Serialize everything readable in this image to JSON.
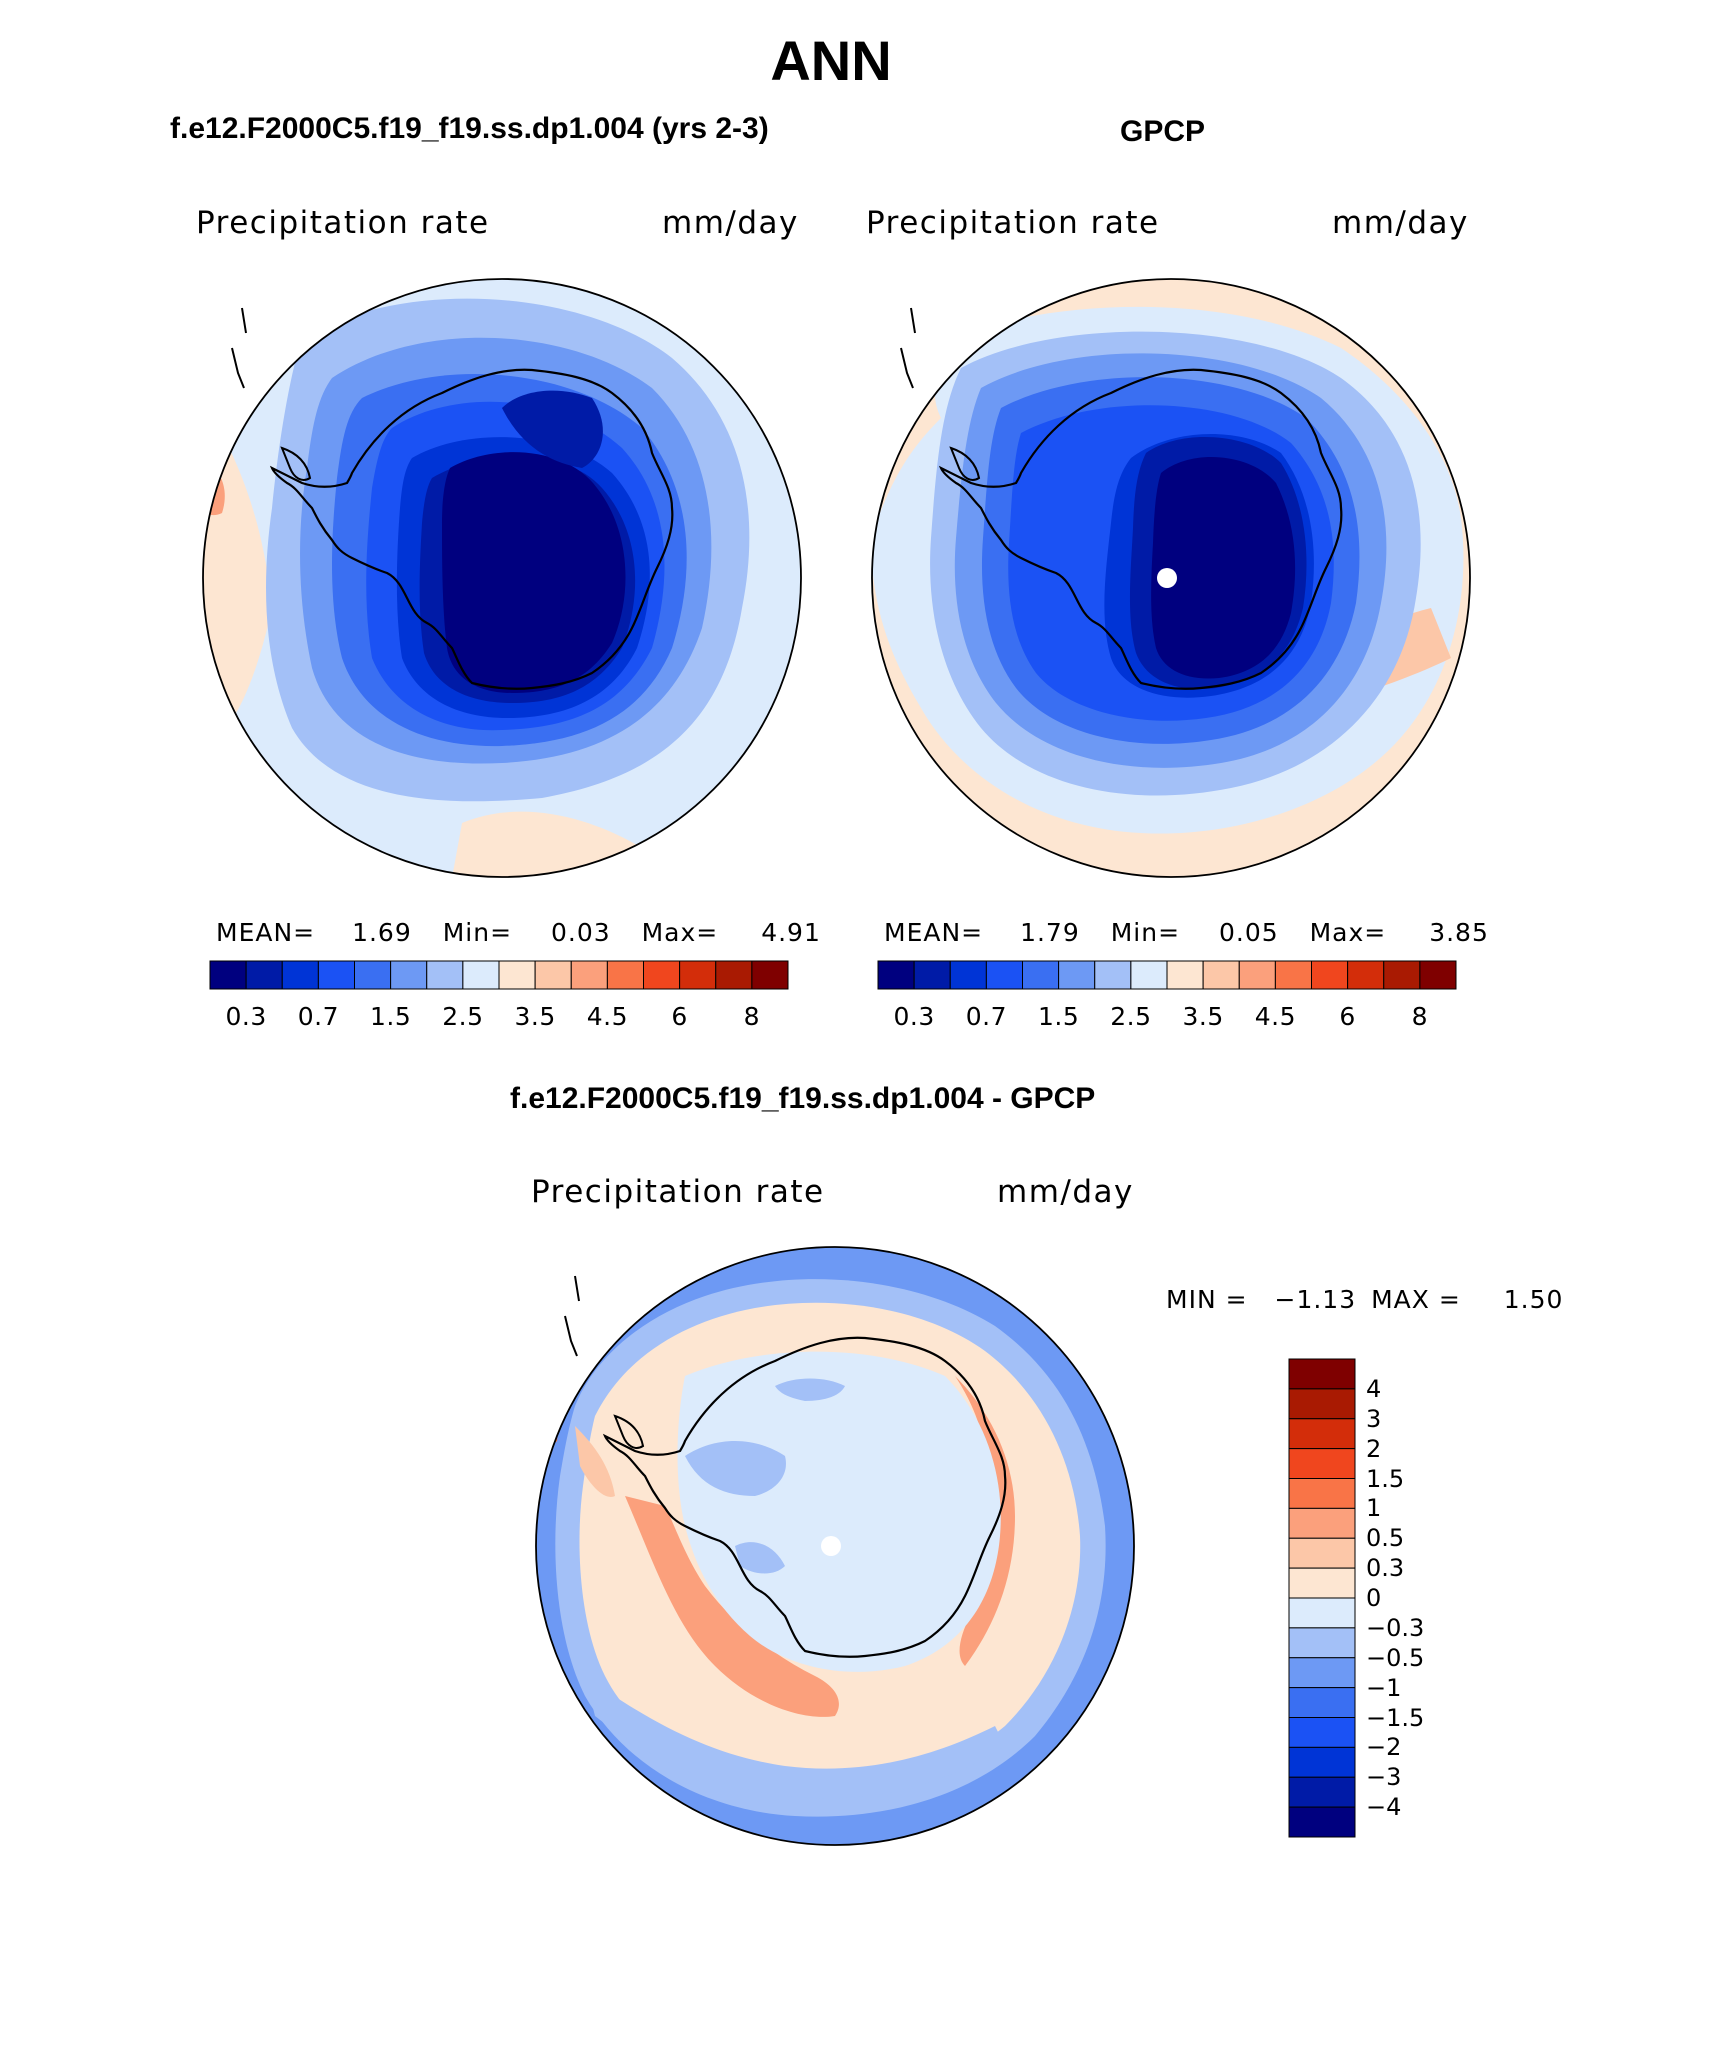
{
  "figure": {
    "title": "ANN"
  },
  "panels": [
    {
      "id": "model",
      "title": "f.e12.F2000C5.f19_f19.ss.dp1.004 (yrs 2-3)",
      "variable": "Precipitation rate",
      "units": "mm/day",
      "stats": {
        "mean_label": "MEAN=",
        "mean": "1.69",
        "min_label": "Min=",
        "min": "0.03",
        "max_label": "Max=",
        "max": "4.91"
      },
      "colorbar": {
        "colors": [
          "#00007f",
          "#001ba7",
          "#0034d6",
          "#1b52f4",
          "#3a6ff2",
          "#6d99f4",
          "#a3c0f7",
          "#dcebfc",
          "#fde6d2",
          "#fcc7a8",
          "#fba07c",
          "#f97447",
          "#f0461e",
          "#d32d0a",
          "#a91a02",
          "#7f0000"
        ],
        "tick_labels": [
          "0.3",
          "0.7",
          "1.5",
          "2.5",
          "3.5",
          "4.5",
          "6",
          "8"
        ]
      }
    },
    {
      "id": "obs",
      "title": "GPCP",
      "variable": "Precipitation rate",
      "units": "mm/day",
      "stats": {
        "mean_label": "MEAN=",
        "mean": "1.79",
        "min_label": "Min=",
        "min": "0.05",
        "max_label": "Max=",
        "max": "3.85"
      },
      "colorbar": {
        "colors": [
          "#00007f",
          "#001ba7",
          "#0034d6",
          "#1b52f4",
          "#3a6ff2",
          "#6d99f4",
          "#a3c0f7",
          "#dcebfc",
          "#fde6d2",
          "#fcc7a8",
          "#fba07c",
          "#f97447",
          "#f0461e",
          "#d32d0a",
          "#a91a02",
          "#7f0000"
        ],
        "tick_labels": [
          "0.3",
          "0.7",
          "1.5",
          "2.5",
          "3.5",
          "4.5",
          "6",
          "8"
        ]
      }
    },
    {
      "id": "diff",
      "title": "f.e12.F2000C5.f19_f19.ss.dp1.004 - GPCP",
      "variable": "Precipitation rate",
      "units": "mm/day",
      "stats": {
        "min_label": "MIN =",
        "min": "−1.13",
        "max_label": "MAX =",
        "max": "1.50"
      },
      "colorbar": {
        "colors_top_to_bottom": [
          "#7f0000",
          "#a91a02",
          "#d32d0a",
          "#f0461e",
          "#f97447",
          "#fba07c",
          "#fcc7a8",
          "#fde6d2",
          "#dcebfc",
          "#a3c0f7",
          "#6d99f4",
          "#3a6ff2",
          "#1b52f4",
          "#0034d6",
          "#001ba7",
          "#00007f"
        ],
        "tick_labels_top_to_bottom": [
          "4",
          "3",
          "2",
          "1.5",
          "1",
          "0.5",
          "0.3",
          "0",
          "−0.3",
          "−0.5",
          "−1",
          "−1.5",
          "−2",
          "−3",
          "−4"
        ]
      }
    }
  ]
}
